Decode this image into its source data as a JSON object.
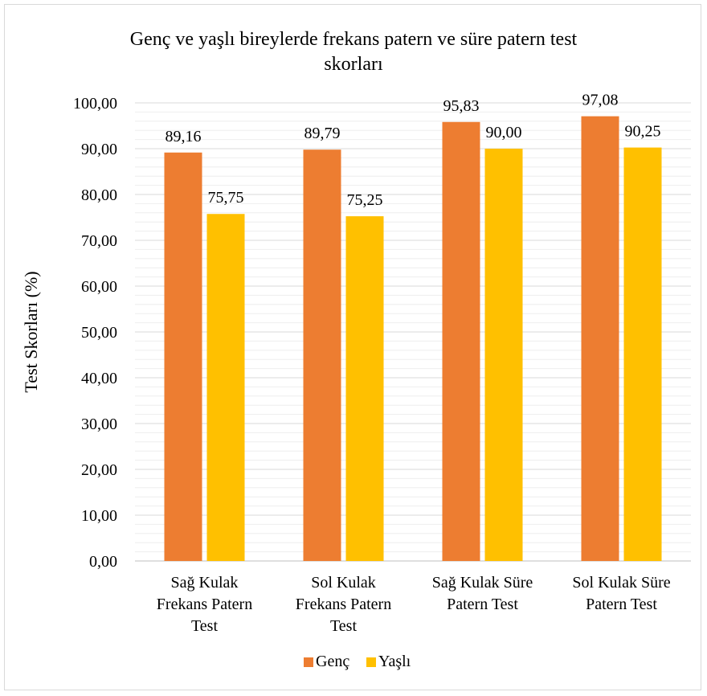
{
  "chart_data": {
    "type": "bar",
    "title_lines": [
      "Genç ve yaşlı bireylerde frekans patern ve süre patern test",
      "skorları"
    ],
    "xlabel": "",
    "ylabel": "Test Skorları (%)",
    "ylim": [
      0,
      100
    ],
    "yticks": [
      0,
      10,
      20,
      30,
      40,
      50,
      60,
      70,
      80,
      90,
      100
    ],
    "ytick_labels": [
      "0,00",
      "10,00",
      "20,00",
      "30,00",
      "40,00",
      "50,00",
      "60,00",
      "70,00",
      "80,00",
      "90,00",
      "100,00"
    ],
    "grid": true,
    "legend_position": "bottom",
    "categories": [
      [
        "Sağ Kulak",
        "Frekans Patern",
        "Test"
      ],
      [
        "Sol Kulak",
        "Frekans Patern",
        "Test"
      ],
      [
        "Sağ Kulak Süre",
        "Patern Test"
      ],
      [
        "Sol Kulak Süre",
        "Patern Test"
      ]
    ],
    "series": [
      {
        "name": "Genç",
        "color": "#ED7D31",
        "values": [
          89.16,
          89.79,
          95.83,
          97.08
        ],
        "labels": [
          "89,16",
          "89,79",
          "95,83",
          "97,08"
        ]
      },
      {
        "name": "Yaşlı",
        "color": "#FFC000",
        "values": [
          75.75,
          75.25,
          90.0,
          90.25
        ],
        "labels": [
          "75,75",
          "75,25",
          "90,00",
          "90,25"
        ]
      }
    ]
  }
}
